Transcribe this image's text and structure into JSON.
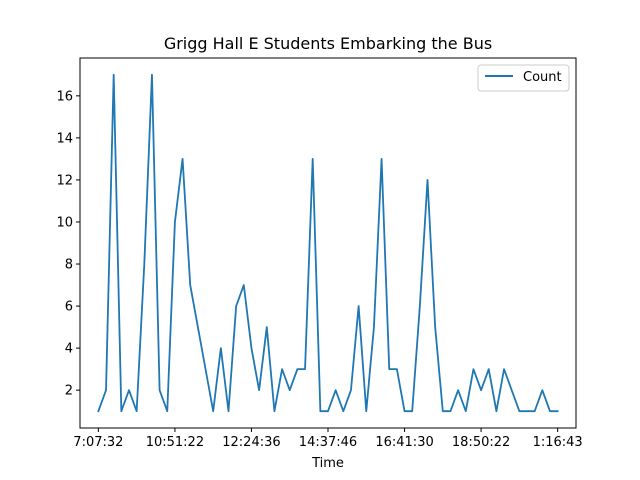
{
  "chart_data": {
    "type": "line",
    "title": "Grigg Hall E Students Embarking the Bus",
    "xlabel": "Time",
    "ylabel": "",
    "x_tick_labels": [
      "7:07:32",
      "10:51:22",
      "12:24:36",
      "14:37:46",
      "16:41:30",
      "18:50:22",
      "1:16:43"
    ],
    "y_ticks": [
      2,
      4,
      6,
      8,
      10,
      12,
      14,
      16
    ],
    "ylim": [
      0.2,
      17.8
    ],
    "xlim": [
      -2.4,
      62.4
    ],
    "grid": false,
    "legend_position": "upper right",
    "series": [
      {
        "name": "Count",
        "color": "#1f77b4",
        "values": [
          1,
          2,
          17,
          1,
          2,
          1,
          8,
          17,
          2,
          1,
          10,
          13,
          7,
          5,
          3,
          1,
          4,
          1,
          6,
          7,
          4,
          2,
          5,
          1,
          3,
          2,
          3,
          3,
          13,
          1,
          1,
          2,
          1,
          2,
          6,
          1,
          5,
          13,
          3,
          3,
          1,
          1,
          6,
          12,
          5,
          1,
          1,
          2,
          1,
          3,
          2,
          3,
          1,
          3,
          2,
          1,
          1,
          1,
          2,
          1,
          1
        ]
      }
    ]
  }
}
